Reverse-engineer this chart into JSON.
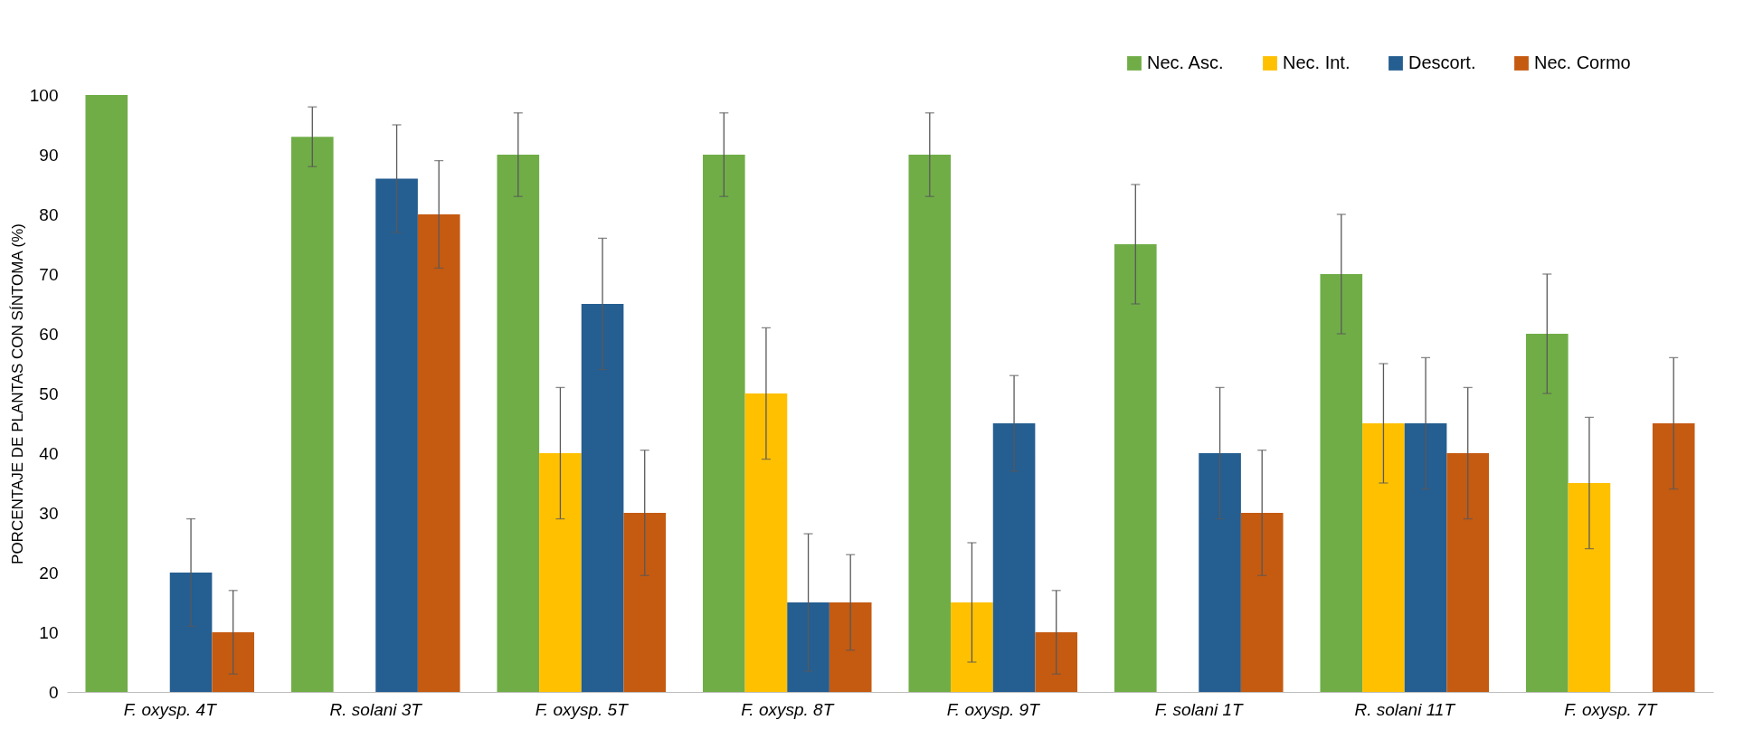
{
  "chart_data": {
    "type": "bar",
    "ylabel": "PORCENTAJE DE PLANTAS CON SÍNTOMA (%)",
    "categories": [
      "F. oxysp. 4T",
      "R. solani 3T",
      "F. oxysp. 5T",
      "F. oxysp. 8T",
      "F. oxysp. 9T",
      "F. solani 1T",
      "R. solani 11T",
      "F. oxysp. 7T"
    ],
    "series": [
      {
        "name": "Nec. Asc.",
        "color": "#70ad47",
        "values": [
          100,
          93,
          90,
          90,
          90,
          75,
          70,
          60
        ],
        "errors": [
          null,
          5,
          7,
          7,
          7,
          10,
          10,
          10
        ]
      },
      {
        "name": "Nec. Int.",
        "color": "#ffc000",
        "values": [
          0,
          0,
          40,
          50,
          15,
          0,
          45,
          35
        ],
        "errors": [
          null,
          null,
          11,
          11,
          10,
          null,
          10,
          11
        ]
      },
      {
        "name": "Descort.",
        "color": "#255e91",
        "values": [
          20,
          86,
          65,
          15,
          45,
          40,
          45,
          0
        ],
        "errors": [
          9,
          9,
          11,
          11.5,
          8,
          11,
          11,
          null
        ]
      },
      {
        "name": "Nec. Cormo",
        "color": "#c55a11",
        "values": [
          10,
          80,
          30,
          15,
          10,
          30,
          40,
          45
        ],
        "errors": [
          7,
          9,
          10.5,
          8,
          7,
          10.5,
          11,
          11
        ]
      }
    ],
    "ylim": [
      0,
      100
    ],
    "yticks": [
      0,
      10,
      20,
      30,
      40,
      50,
      60,
      70,
      80,
      90,
      100
    ],
    "grid": false,
    "legend": "top right"
  }
}
